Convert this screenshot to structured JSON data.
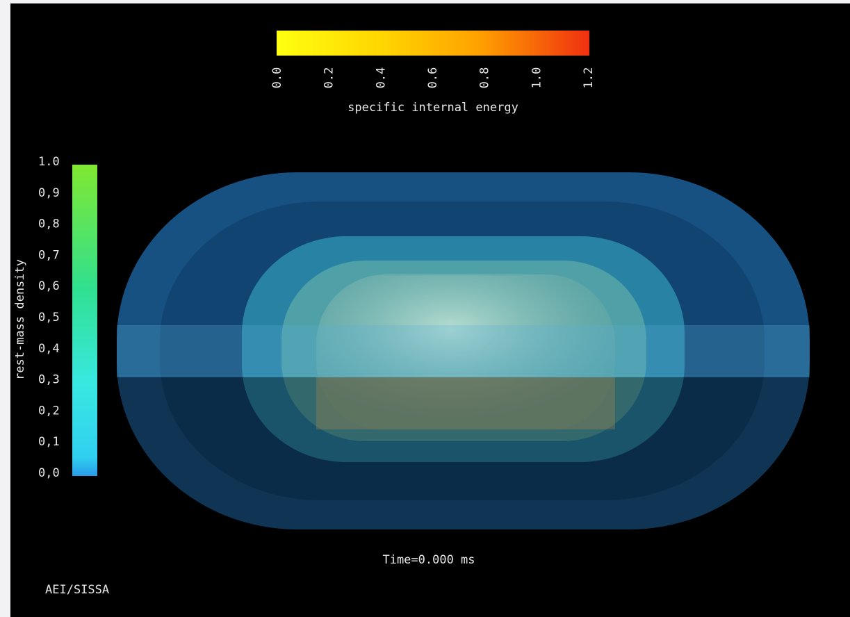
{
  "top_colorbar": {
    "label": "specific internal energy",
    "ticks": [
      "0.0",
      "0.2",
      "0.4",
      "0.6",
      "0.8",
      "1.0",
      "1.2"
    ]
  },
  "left_colorbar": {
    "label": "rest-mass density",
    "ticks": [
      "1.0",
      "0,9",
      "0,8",
      "0,7",
      "0,6",
      "0,5",
      "0,4",
      "0,3",
      "0,2",
      "0,1",
      "0,0"
    ]
  },
  "time_label": "Time=0.000 ms",
  "credit": "AEI/SISSA"
}
